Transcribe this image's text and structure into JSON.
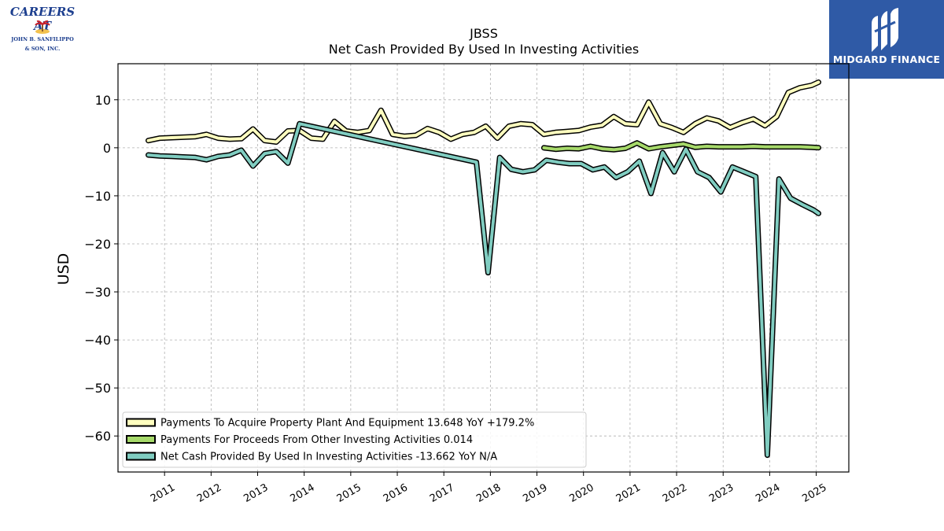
{
  "logos": {
    "left": {
      "line1": "CAREERS AT",
      "line2": "JOHN B. SANFILIPPO",
      "line3": "& SON, INC."
    },
    "right": {
      "brand": "MIDGARD FINANCE"
    }
  },
  "chart_data": {
    "type": "line",
    "title": "JBSS",
    "subtitle": "Net Cash Provided By Used In Investing Activities",
    "ylabel": "USD",
    "xlabel": "",
    "xlim": [
      2010.0,
      2025.7
    ],
    "ylim": [
      -67.5,
      17.5
    ],
    "yticks": [
      10,
      0,
      -10,
      -20,
      -30,
      -40,
      -50,
      -60
    ],
    "xticks": [
      2011,
      2012,
      2013,
      2014,
      2015,
      2016,
      2017,
      2018,
      2019,
      2020,
      2021,
      2022,
      2023,
      2024,
      2025
    ],
    "grid": true,
    "legend_position": "lower-left",
    "series": [
      {
        "name": "Payments To Acquire Property Plant And Equipment",
        "legend": "Payments To Acquire Property Plant And Equipment  13.648 YoY +179.2%",
        "color": "#ffffbf",
        "x": [
          2010.65,
          2010.9,
          2011.15,
          2011.4,
          2011.65,
          2011.9,
          2012.15,
          2012.4,
          2012.65,
          2012.9,
          2013.15,
          2013.4,
          2013.65,
          2013.9,
          2014.15,
          2014.4,
          2014.65,
          2014.9,
          2015.15,
          2015.4,
          2015.65,
          2015.9,
          2016.15,
          2016.4,
          2016.65,
          2016.9,
          2017.15,
          2017.4,
          2017.65,
          2017.9,
          2018.15,
          2018.4,
          2018.65,
          2018.9,
          2019.15,
          2019.4,
          2019.65,
          2019.9,
          2020.15,
          2020.4,
          2020.65,
          2020.9,
          2021.15,
          2021.4,
          2021.65,
          2021.9,
          2022.15,
          2022.4,
          2022.65,
          2022.9,
          2023.15,
          2023.4,
          2023.65,
          2023.9,
          2024.15,
          2024.4,
          2024.65,
          2024.9,
          2025.05
        ],
        "y": [
          1.5,
          2.0,
          2.1,
          2.2,
          2.3,
          2.8,
          2.0,
          1.8,
          1.9,
          3.9,
          1.5,
          1.2,
          3.5,
          3.6,
          2.0,
          1.8,
          5.5,
          3.5,
          3.2,
          3.6,
          7.8,
          2.8,
          2.4,
          2.6,
          4.0,
          3.2,
          1.8,
          2.8,
          3.2,
          4.5,
          2.0,
          4.5,
          5.0,
          4.8,
          2.8,
          3.2,
          3.4,
          3.6,
          4.3,
          4.7,
          6.5,
          5.0,
          4.8,
          9.5,
          5.0,
          4.2,
          3.2,
          5.0,
          6.2,
          5.6,
          4.2,
          5.2,
          6.0,
          4.6,
          6.5,
          11.5,
          12.5,
          13.0,
          13.648
        ]
      },
      {
        "name": "Payments For Proceeds From Other Investing Activities",
        "legend": "Payments For Proceeds From Other Investing Activities  0.014",
        "color": "#a6d96a",
        "x": [
          2019.15,
          2019.4,
          2019.65,
          2019.9,
          2020.15,
          2020.4,
          2020.65,
          2020.9,
          2021.15,
          2021.4,
          2021.65,
          2021.9,
          2022.15,
          2022.4,
          2022.65,
          2022.9,
          2023.15,
          2023.4,
          2023.65,
          2023.9,
          2024.15,
          2024.4,
          2024.65,
          2024.9,
          2025.05
        ],
        "y": [
          0.0,
          -0.3,
          -0.1,
          -0.2,
          0.3,
          -0.2,
          -0.4,
          -0.1,
          1.0,
          -0.2,
          0.2,
          0.5,
          0.8,
          0.1,
          0.3,
          0.2,
          0.2,
          0.2,
          0.3,
          0.2,
          0.2,
          0.2,
          0.2,
          0.1,
          0.014
        ]
      },
      {
        "name": "Net Cash Provided By Used In Investing Activities",
        "legend": "Net Cash Provided By Used In Investing Activities  -13.662 YoY N/A",
        "color": "#80cdc1",
        "x": [
          2010.65,
          2010.9,
          2011.15,
          2011.4,
          2011.65,
          2011.9,
          2012.15,
          2012.4,
          2012.65,
          2012.9,
          2013.15,
          2013.4,
          2013.65,
          2013.9,
          2017.7,
          2017.95,
          2018.2,
          2018.45,
          2018.7,
          2018.95,
          2019.2,
          2019.45,
          2019.7,
          2019.95,
          2020.2,
          2020.45,
          2020.7,
          2020.95,
          2021.2,
          2021.45,
          2021.7,
          2021.95,
          2022.2,
          2022.45,
          2022.7,
          2022.95,
          2023.2,
          2023.45,
          2023.7,
          2023.95,
          2024.2,
          2024.45,
          2024.7,
          2024.95,
          2025.05
        ],
        "y": [
          -1.5,
          -1.7,
          -1.8,
          -1.9,
          -2.0,
          -2.5,
          -1.8,
          -1.5,
          -0.5,
          -3.8,
          -1.2,
          -0.8,
          -3.2,
          5.0,
          -3.0,
          -26.0,
          -2.0,
          -4.5,
          -5.0,
          -4.6,
          -2.6,
          -3.0,
          -3.3,
          -3.3,
          -4.6,
          -4.0,
          -6.2,
          -5.0,
          -2.8,
          -9.5,
          -1.0,
          -5.0,
          -0.3,
          -5.0,
          -6.2,
          -9.2,
          -4.0,
          -5.0,
          -6.0,
          -64.0,
          -6.5,
          -10.5,
          -11.8,
          -13.0,
          -13.662
        ]
      }
    ]
  }
}
